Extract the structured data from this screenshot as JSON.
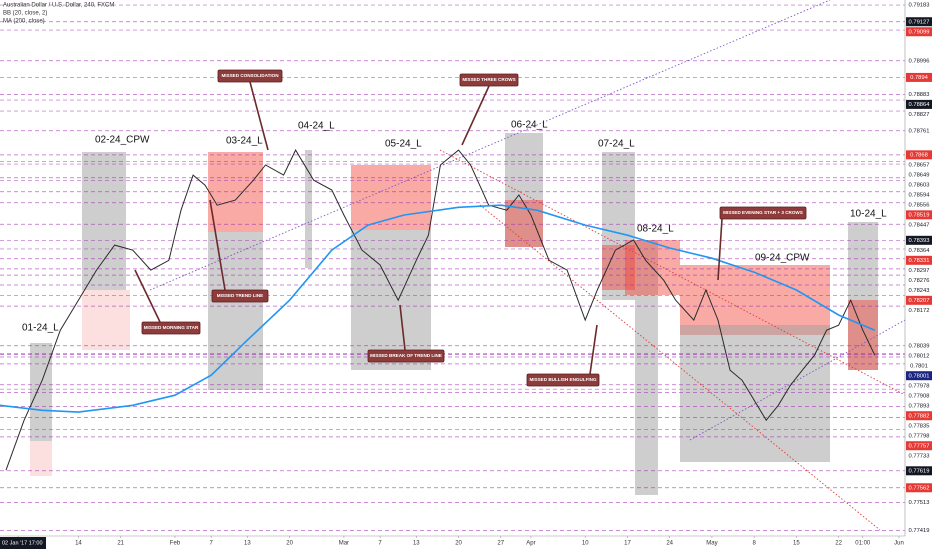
{
  "chart_data": {
    "type": "line",
    "studies": [
      "BB (20, close, 2)"
    ],
    "series": [
      {
        "name": "Australian Dollar / U.S. Dollar, 240, FXCM",
        "color": "#2b2b2b",
        "x": [
          2,
          5,
          8,
          11,
          14,
          17,
          20,
          23,
          26,
          29,
          31,
          33,
          35,
          37,
          40,
          43,
          45,
          48,
          50,
          53,
          56,
          58,
          61,
          64,
          67,
          70,
          72,
          74,
          77,
          79,
          82,
          85,
          87,
          89,
          92,
          95,
          98,
          100,
          103,
          106,
          108,
          111,
          113,
          116,
          118,
          120,
          122,
          124,
          126,
          128,
          130,
          132,
          134,
          136,
          138,
          140,
          142,
          144,
          146
        ],
        "values": [
          0.77621,
          0.77789,
          0.77923,
          0.78091,
          0.78192,
          0.78293,
          0.78377,
          0.7836,
          0.78293,
          0.78326,
          0.78494,
          0.78612,
          0.78578,
          0.78511,
          0.78528,
          0.78595,
          0.78646,
          0.78612,
          0.78696,
          0.78595,
          0.78562,
          0.78478,
          0.7836,
          0.7831,
          0.78192,
          0.78326,
          0.7841,
          0.78646,
          0.78696,
          0.78646,
          0.78511,
          0.78494,
          0.78545,
          0.78478,
          0.78326,
          0.78293,
          0.78125,
          0.78226,
          0.7836,
          0.78394,
          0.78326,
          0.78259,
          0.78192,
          0.78125,
          0.78226,
          0.78125,
          0.77957,
          0.77923,
          0.77856,
          0.77789,
          0.77839,
          0.77906,
          0.77957,
          0.78007,
          0.78091,
          0.78108,
          0.78192,
          0.78091,
          0.78007
        ]
      },
      {
        "name": "MA (200, close)",
        "color": "#2196f3",
        "x": [
          1,
          8,
          14,
          23,
          30,
          36,
          42,
          49,
          56,
          62,
          68,
          77,
          84,
          90,
          98,
          105,
          112,
          119,
          126,
          133,
          140,
          146
        ],
        "values": [
          0.77839,
          0.77822,
          0.77816,
          0.77839,
          0.77873,
          0.7794,
          0.78058,
          0.78192,
          0.7836,
          0.78444,
          0.78478,
          0.78504,
          0.78511,
          0.78494,
          0.78444,
          0.7841,
          0.78367,
          0.78333,
          0.78286,
          0.78226,
          0.78142,
          0.78091
        ]
      }
    ],
    "xlim": [
      1,
      151
    ],
    "ylim": [
      0.774,
      0.792
    ],
    "xticks": [
      {
        "value": 4,
        "label": "02 Jan '17  17:00"
      },
      14,
      21,
      {
        "value": 30,
        "label": "Feb"
      },
      {
        "value": 36,
        "label": "7"
      },
      {
        "value": 42,
        "label": "13"
      },
      {
        "value": 49,
        "label": "20"
      },
      {
        "value": 58,
        "label": "Mar"
      },
      {
        "value": 64,
        "label": "7"
      },
      {
        "value": 70,
        "label": "13"
      },
      {
        "value": 77,
        "label": "20"
      },
      {
        "value": 84,
        "label": "27"
      },
      {
        "value": 89,
        "label": "Apr"
      },
      {
        "value": 98,
        "label": "10"
      },
      {
        "value": 105,
        "label": "17"
      },
      {
        "value": 112,
        "label": "24"
      },
      {
        "value": 119,
        "label": "May"
      },
      {
        "value": 126,
        "label": "8"
      },
      {
        "value": 133,
        "label": "15"
      },
      {
        "value": 140,
        "label": "22"
      },
      {
        "value": 144,
        "label": "01:00"
      },
      {
        "value": 150,
        "label": "Jun"
      }
    ],
    "hline_color": "#9c27b0",
    "hlines": [
      {
        "value": 0.79183,
        "color": "#ffffff"
      },
      {
        "value": 0.79127,
        "color": "#131722"
      },
      {
        "value": 0.79099,
        "color": "#e53935"
      },
      {
        "value": 0.78996,
        "color": "#ffffff"
      },
      {
        "value": 0.7894,
        "color": "#e53935"
      },
      {
        "value": 0.78883,
        "color": "#ffffff"
      },
      {
        "value": 0.78864,
        "color": "#131722"
      },
      {
        "value": 0.78827,
        "color": "#ffffff"
      },
      {
        "value": 0.78761,
        "color": "#ffffff"
      },
      {
        "value": 0.7868,
        "color": "#e53935"
      },
      {
        "value": 0.78657,
        "color": "#ffffff"
      },
      {
        "value": 0.78649,
        "color": "#ffffff"
      },
      {
        "value": 0.78603,
        "color": "#ffffff"
      },
      {
        "value": 0.78594,
        "color": "#ffffff"
      },
      {
        "value": 0.78556,
        "color": "#ffffff"
      },
      {
        "value": 0.78519,
        "color": "#e53935"
      },
      {
        "value": 0.78447,
        "color": "#ffffff"
      },
      {
        "value": 0.78393,
        "color": "#131722"
      },
      {
        "value": 0.78364,
        "color": "#ffffff"
      },
      {
        "value": 0.78331,
        "color": "#e53935"
      },
      {
        "value": 0.78297,
        "color": "#ffffff"
      },
      {
        "value": 0.78276,
        "color": "#ffffff"
      },
      {
        "value": 0.78243,
        "color": "#ffffff"
      },
      {
        "value": 0.78207,
        "color": "#e53935"
      },
      {
        "value": 0.78172,
        "color": "#ffffff"
      },
      {
        "value": 0.78039,
        "color": "#ffffff"
      },
      {
        "value": 0.78012,
        "color": "#ffffff"
      },
      {
        "value": 0.7801,
        "color": "#ffffff"
      },
      {
        "value": 0.78001,
        "color": "#1a237e"
      },
      {
        "value": 0.77978,
        "color": "#ffffff"
      },
      {
        "value": 0.77908,
        "color": "#ffffff"
      },
      {
        "value": 0.77893,
        "color": "#ffffff"
      },
      {
        "value": 0.77882,
        "color": "#e53935"
      },
      {
        "value": 0.77835,
        "color": "#ffffff"
      },
      {
        "value": 0.77798,
        "color": "#ffffff"
      },
      {
        "value": 0.77757,
        "color": "#e53935"
      },
      {
        "value": 0.77733,
        "color": "#ffffff"
      },
      {
        "value": 0.77619,
        "color": "#131722"
      },
      {
        "value": 0.77562,
        "color": "#e53935"
      },
      {
        "value": 0.77513,
        "color": "#ffffff"
      },
      {
        "value": 0.77419,
        "color": "#ffffff"
      }
    ]
  },
  "annotations": [
    "MISSED CONSOLIDATION",
    "MISSED THREE CROWS",
    "MISSED TREND LINE",
    "MISSED MORNING STAR",
    "MISSED BREAK OF TREND LINE",
    "MISSED BULLISH ENGULFING",
    "MISSED EVENING STAR + 3 CROWS"
  ],
  "periods": [
    "01-24_L",
    "02-24_CPW",
    "03-24_L",
    "04-24_L",
    "05-24_L",
    "06-24_L",
    "07-24_L",
    "08-24_L",
    "09-24_CPW",
    "10-24_L"
  ]
}
